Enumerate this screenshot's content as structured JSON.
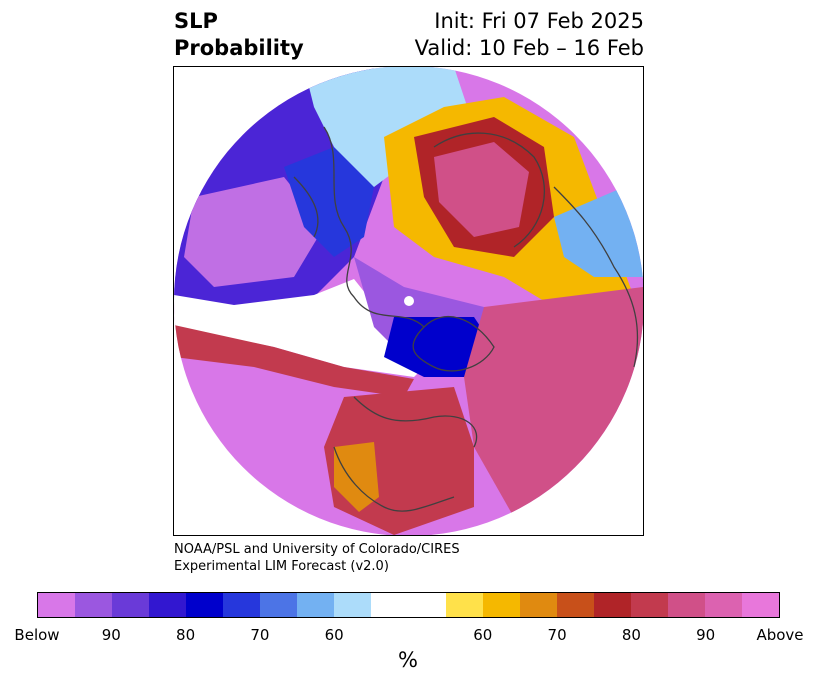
{
  "title": {
    "left_line1": "SLP",
    "left_line2": "Probability",
    "right_line1": "Init: Fri 07 Feb 2025",
    "right_line2": "Valid: 10 Feb – 16 Feb"
  },
  "credit": {
    "line1": "NOAA/PSL and University of Colorado/CIRES",
    "line2": "Experimental LIM Forecast (v2.0)"
  },
  "colorbar": {
    "colors": [
      "#d877e8",
      "#9b57e0",
      "#6a3ad8",
      "#3217d0",
      "#0000cc",
      "#2637dc",
      "#4c74e6",
      "#73b1f2",
      "#acdcfa",
      "#ffffff",
      "#ffe14a",
      "#f5b800",
      "#e08a10",
      "#c8501a",
      "#b02428",
      "#c23a4e",
      "#d05088",
      "#dc62b0",
      "#e877db"
    ],
    "tick_labels": [
      "Below",
      "90",
      "80",
      "70",
      "60",
      "60",
      "70",
      "80",
      "90",
      "Above"
    ],
    "unit": "%"
  },
  "map": {
    "projection": "north-polar-stereographic",
    "regions": [
      {
        "name": "north-pacific-below",
        "category": "Below"
      },
      {
        "name": "hudson-bay-below",
        "category": "90"
      },
      {
        "name": "barents-kara-above",
        "category": "Above"
      },
      {
        "name": "north-atlantic-above",
        "category": "Above"
      },
      {
        "name": "continental-us-above",
        "category": "Above"
      }
    ]
  }
}
